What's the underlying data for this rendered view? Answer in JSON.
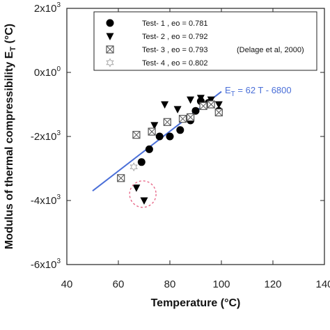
{
  "chart_data": {
    "type": "scatter",
    "xlabel": "Temperature (°C)",
    "ylabel_main": "Modulus of thermal compressibility E",
    "ylabel_sub": "T",
    "ylabel_unit": " (°C)",
    "xlim": [
      40,
      140
    ],
    "ylim": [
      -6000,
      2000
    ],
    "x_ticks": [
      {
        "value": 40,
        "label": "40"
      },
      {
        "value": 60,
        "label": "60"
      },
      {
        "value": 80,
        "label": "80"
      },
      {
        "value": 100,
        "label": "100"
      },
      {
        "value": 120,
        "label": "120"
      },
      {
        "value": 140,
        "label": "140"
      }
    ],
    "y_ticks": [
      {
        "value": 2000,
        "mant": "2x10",
        "exp": "3"
      },
      {
        "value": 0,
        "mant": "0x10",
        "exp": "0"
      },
      {
        "value": -2000,
        "mant": "-2x10",
        "exp": "3"
      },
      {
        "value": -4000,
        "mant": "-4x10",
        "exp": "3"
      },
      {
        "value": -6000,
        "mant": "-6x10",
        "exp": "3"
      }
    ],
    "legend_position": "top-left",
    "series": [
      {
        "name": "Test- 1 , eo = 0.781",
        "marker": "filled-circle",
        "color": "#000000",
        "points": [
          [
            69,
            -2800
          ],
          [
            72,
            -2400
          ],
          [
            76,
            -2000
          ],
          [
            80,
            -2000
          ],
          [
            84,
            -1800
          ],
          [
            88,
            -1500
          ],
          [
            90,
            -1200
          ],
          [
            92,
            -900
          ],
          [
            95,
            -950
          ],
          [
            99,
            -1200
          ]
        ]
      },
      {
        "name": "Test- 2 , eo = 0.792",
        "marker": "filled-triangle-down",
        "color": "#000000",
        "points": [
          [
            67,
            -3600
          ],
          [
            70,
            -4000
          ],
          [
            74,
            -1650
          ],
          [
            78,
            -1000
          ],
          [
            83,
            -1150
          ],
          [
            88,
            -850
          ],
          [
            92,
            -800
          ],
          [
            96,
            -850
          ],
          [
            99,
            -1000
          ]
        ]
      },
      {
        "name": "Test- 3 , eo = 0.793",
        "marker": "box-x",
        "color": "#555555",
        "points": [
          [
            61,
            -3300
          ],
          [
            67,
            -1950
          ],
          [
            73,
            -1850
          ],
          [
            79,
            -1550
          ],
          [
            85,
            -1450
          ],
          [
            88,
            -1400
          ],
          [
            93,
            -1050
          ],
          [
            96,
            -1000
          ],
          [
            99,
            -1250
          ]
        ]
      },
      {
        "name": "Test- 4 , eo = 0.802",
        "marker": "open-star",
        "color": "#aaaaaa",
        "points": [
          [
            66,
            -2950
          ]
        ]
      }
    ],
    "reference_note": "(Delage et al, 2000)",
    "fit_line": {
      "label_main": "E",
      "label_sub": "T",
      "label_rest": " = 62 T - 6800",
      "color": "#4a6fd8",
      "x_range": [
        50,
        100
      ],
      "slope": 62,
      "intercept": -6800
    },
    "highlight": {
      "center": [
        69.5,
        -3800
      ],
      "color": "#e86a8a"
    }
  }
}
